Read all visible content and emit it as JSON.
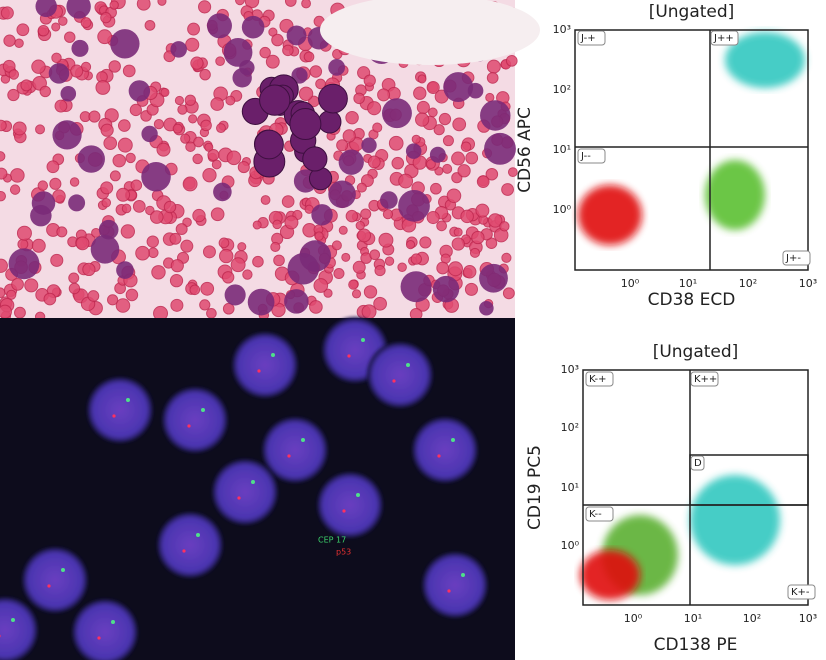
{
  "fish": {
    "labels": [
      "CEP 17",
      "p53"
    ]
  },
  "plots": [
    {
      "title": "[Ungated]",
      "x_label": "CD38 ECD",
      "y_label": "CD56 APC",
      "x_ticks": [
        "10⁰",
        "10¹",
        "10²",
        "10³"
      ],
      "y_ticks": [
        "10³",
        "10²",
        "10¹",
        "10⁰"
      ],
      "gates": [
        "J-+",
        "J++",
        "J--",
        "J+-",
        ""
      ]
    },
    {
      "title": "[Ungated]",
      "x_label": "CD138 PE",
      "y_label": "CD19 PC5",
      "x_ticks": [
        "10⁰",
        "10¹",
        "10²",
        "10³"
      ],
      "y_ticks": [
        "10³",
        "10²",
        "10¹",
        "10⁰"
      ],
      "gates": [
        "K-+",
        "K++",
        "K--",
        "K+-",
        "D"
      ]
    }
  ]
}
